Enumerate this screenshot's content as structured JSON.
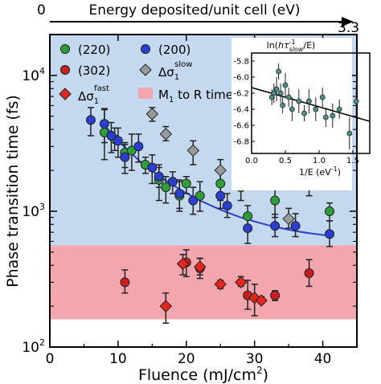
{
  "chart_data": {
    "type": "scatter",
    "xlabel": "Fluence (mJ/cm",
    "xlabel_sup": "2",
    "xlabel_close": ")",
    "ylabel": "Phase transition time (fs)",
    "xlim": [
      0,
      45
    ],
    "ylim": [
      100,
      20000
    ],
    "yscale": "log",
    "x_ticks": [
      0,
      10,
      20,
      30,
      40
    ],
    "y_ticks": [
      {
        "value": 100,
        "base": "10",
        "exp": "2"
      },
      {
        "value": 1000,
        "base": "10",
        "exp": "3"
      },
      {
        "value": 10000,
        "base": "10",
        "exp": "4"
      }
    ],
    "top_axis": {
      "label": "Energy deposited/unit cell (eV)",
      "left_value": "0",
      "right_value": "3.3"
    },
    "bands": [
      {
        "name": "M1 to R time",
        "y_from": 160,
        "y_to": 560,
        "color": "#f4a6ae"
      },
      {
        "name": "background",
        "y_from": 560,
        "y_to": 20000,
        "color": "#c4d9f0"
      }
    ],
    "legend": {
      "placement": "top-left",
      "items": [
        {
          "text": "(220)",
          "marker": "circle",
          "color": "#2e9e3a"
        },
        {
          "text": "(200)",
          "marker": "circle",
          "color": "#2a3fd0"
        },
        {
          "text": "(302)",
          "marker": "circle",
          "color": "#c81e1e"
        },
        {
          "text": "Δσ",
          "sub": "1",
          "sup": "slow",
          "marker": "diamond",
          "color": "#9a9a9a"
        },
        {
          "text": "Δσ",
          "sub": "1",
          "sup": "fast",
          "marker": "diamond",
          "color": "#e8261e"
        },
        {
          "text": "M",
          "sub": "1",
          "tail": " to R time",
          "marker": "square",
          "color": "#f4a6ae"
        }
      ]
    },
    "series": [
      {
        "name": "(220)",
        "marker": "circle",
        "color": "#2e9e3a",
        "points": [
          [
            8,
            3800,
            2400,
            5600
          ],
          [
            9.5,
            3400,
            2800,
            4100
          ],
          [
            11,
            2700,
            2100,
            3200
          ],
          [
            12,
            2800,
            2000,
            3700
          ],
          [
            14,
            2200,
            1900,
            2500
          ],
          [
            16,
            1700,
            1200,
            2100
          ],
          [
            17,
            1500,
            1150,
            1800
          ],
          [
            19,
            1300,
            1000,
            1650
          ],
          [
            20,
            1600,
            1350,
            1800
          ],
          [
            22,
            1300,
            1000,
            1650
          ],
          [
            25,
            1600,
            1200,
            2000
          ],
          [
            28,
            1500,
            1200,
            1850
          ],
          [
            29,
            920,
            750,
            1100
          ],
          [
            33,
            1200,
            900,
            1500
          ],
          [
            38,
            1550,
            1300,
            1800
          ],
          [
            41,
            1000,
            850,
            1150
          ]
        ]
      },
      {
        "name": "(200)",
        "marker": "circle",
        "color": "#2a3fd0",
        "points": [
          [
            6,
            4700,
            3600,
            5800
          ],
          [
            8,
            4400,
            3200,
            5700
          ],
          [
            9,
            3600,
            2700,
            4500
          ],
          [
            10,
            3300,
            2500,
            4100
          ],
          [
            11,
            2500,
            1900,
            3100
          ],
          [
            13,
            3000,
            2300,
            3700
          ],
          [
            15,
            2100,
            1600,
            2600
          ],
          [
            16,
            1800,
            1500,
            2200
          ],
          [
            18,
            1650,
            1350,
            1950
          ],
          [
            19,
            1350,
            1050,
            1700
          ],
          [
            21,
            1200,
            950,
            1500
          ],
          [
            25,
            1300,
            1050,
            1600
          ],
          [
            26,
            1100,
            900,
            1350
          ],
          [
            29,
            750,
            580,
            900
          ],
          [
            33,
            780,
            650,
            950
          ],
          [
            36,
            780,
            650,
            960
          ],
          [
            41,
            680,
            550,
            850
          ]
        ]
      },
      {
        "name": "(302)",
        "marker": "circle",
        "color": "#c81e1e",
        "points": [
          [
            11,
            300,
            250,
            370
          ],
          [
            20,
            420,
            330,
            520
          ],
          [
            22,
            380,
            320,
            450
          ],
          [
            29,
            240,
            190,
            310
          ],
          [
            33,
            240,
            220,
            260
          ],
          [
            38,
            350,
            280,
            440
          ]
        ]
      },
      {
        "name": "Δσ1 slow",
        "marker": "diamond",
        "color": "#9a9a9a",
        "points": [
          [
            15,
            5200,
            4600,
            5800
          ],
          [
            17,
            3700,
            3300,
            4200
          ],
          [
            21,
            2800,
            2200,
            3300
          ],
          [
            25,
            2000,
            1650,
            2400
          ],
          [
            28,
            2000,
            1750,
            2300
          ],
          [
            35,
            880,
            750,
            1050
          ],
          [
            38,
            2100,
            1750,
            2500
          ]
        ]
      },
      {
        "name": "Δσ1 fast",
        "marker": "diamond",
        "color": "#e8261e",
        "points": [
          [
            17,
            200,
            150,
            250
          ],
          [
            19.5,
            410,
            340,
            480
          ],
          [
            22,
            390,
            340,
            450
          ],
          [
            25,
            290,
            270,
            310
          ],
          [
            28,
            300,
            280,
            330
          ],
          [
            30,
            230,
            170,
            290
          ],
          [
            31,
            220,
            210,
            235
          ]
        ]
      }
    ],
    "fit": {
      "color": "#2a3fd0",
      "x": [
        8,
        10,
        12,
        14,
        16,
        18,
        20,
        22,
        24,
        26,
        28,
        30,
        32,
        34,
        36,
        38,
        41
      ],
      "y": [
        4300,
        3300,
        2650,
        2150,
        1820,
        1560,
        1360,
        1200,
        1080,
        980,
        900,
        840,
        790,
        750,
        715,
        690,
        660
      ]
    },
    "inset": {
      "ylabel_prefix": "ln(",
      "ylabel_h": "h",
      "ylabel_tau": "τ",
      "ylabel_sup": "-1",
      "ylabel_sub": "slow",
      "ylabel_suffix": "/E)",
      "xlabel": "1/E (eV",
      "xlabel_sup": "-1",
      "xlabel_close": ")",
      "xlim": [
        0,
        1.75
      ],
      "ylim": [
        -6.95,
        -5.7
      ],
      "x_ticks": [
        "0.0",
        "0.5",
        "1.0",
        "1.5"
      ],
      "y_ticks": [
        "-5.8",
        "-6.0",
        "-6.2",
        "-6.4",
        "-6.6",
        "-6.8"
      ],
      "points": [
        [
          0.3,
          -6.25,
          0.1
        ],
        [
          0.33,
          -6.2,
          0.12
        ],
        [
          0.37,
          -6.15,
          0.15
        ],
        [
          0.4,
          -5.93,
          0.1
        ],
        [
          0.43,
          -6.2,
          0.12
        ],
        [
          0.46,
          -6.35,
          0.1
        ],
        [
          0.5,
          -6.1,
          0.15
        ],
        [
          0.55,
          -6.25,
          0.12
        ],
        [
          0.6,
          -6.4,
          0.15
        ],
        [
          0.7,
          -6.3,
          0.15
        ],
        [
          0.78,
          -6.45,
          0.1
        ],
        [
          0.85,
          -6.3,
          0.15
        ],
        [
          0.95,
          -6.4,
          0.15
        ],
        [
          1.05,
          -6.25,
          0.12
        ],
        [
          1.1,
          -6.5,
          0.12
        ],
        [
          1.2,
          -6.48,
          0.15
        ],
        [
          1.3,
          -6.4,
          0.12
        ],
        [
          1.45,
          -6.7,
          0.2
        ],
        [
          1.55,
          -6.3,
          0.2
        ]
      ],
      "fit": {
        "x": [
          0.0,
          1.75
        ],
        "y": [
          -6.13,
          -6.55
        ]
      }
    }
  }
}
